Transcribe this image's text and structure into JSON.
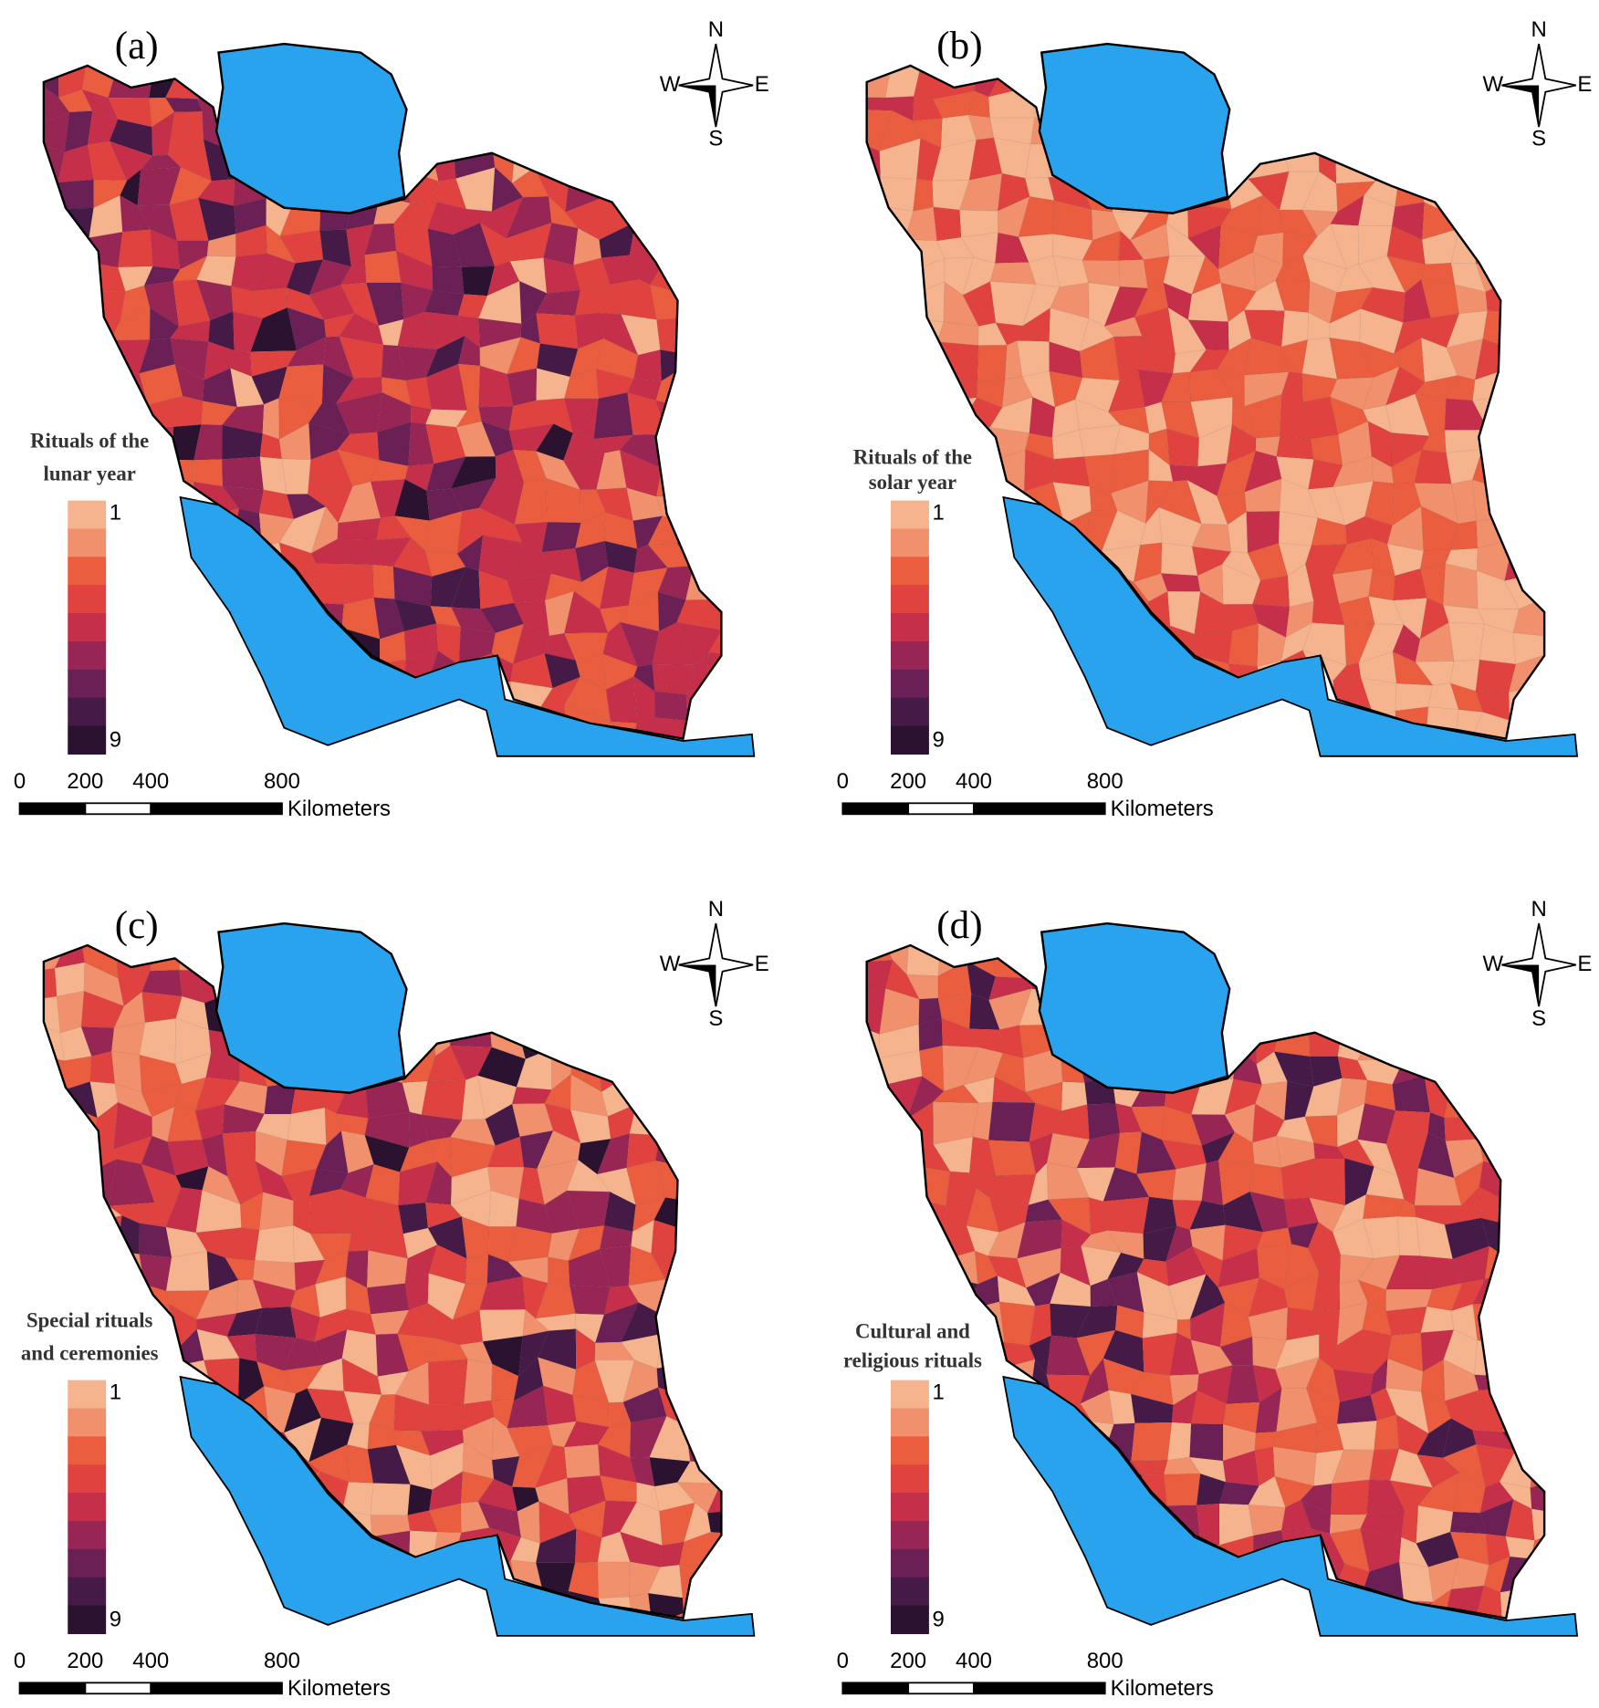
{
  "panels": [
    {
      "label": "(a)",
      "legend_title": [
        "Rituals of the",
        "lunar year"
      ]
    },
    {
      "label": "(b)",
      "legend_title": [
        "Rituals of the",
        "solar year"
      ]
    },
    {
      "label": "(c)",
      "legend_title": [
        "Special rituals",
        "and ceremonies"
      ]
    },
    {
      "label": "(d)",
      "legend_title": [
        "Cultural and",
        "religious rituals"
      ]
    }
  ],
  "compass": {
    "n": "N",
    "s": "S",
    "w": "W",
    "e": "E"
  },
  "legend": {
    "min": 1,
    "max": 9,
    "colors": [
      "#f5b48e",
      "#f0906c",
      "#ea5d3e",
      "#e0433f",
      "#c62f4a",
      "#982655",
      "#6a1f55",
      "#461a46",
      "#2a1230"
    ]
  },
  "scale_bar": {
    "ticks": [
      0,
      200,
      400,
      800
    ],
    "unit": "Kilometers"
  },
  "water_color": "#29a3ee"
}
